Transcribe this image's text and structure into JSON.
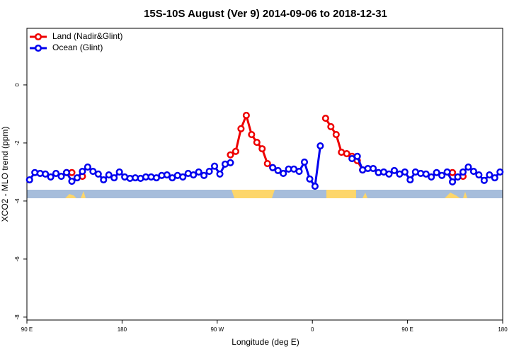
{
  "chart_data": {
    "type": "line",
    "title": "15S-10S August (Ver 9)   2014-09-06 to 2018-12-31",
    "x_label": "Longitude (deg E)",
    "y_label": "XCO2 - MLO trend (ppm)",
    "xlim": [
      90,
      540
    ],
    "ylim": [
      -8.1,
      1.95
    ],
    "xticks": [
      {
        "value": 90,
        "label": "90 E"
      },
      180,
      {
        "value": 270,
        "label": "90 W"
      },
      {
        "value": 360,
        "label": "0"
      },
      {
        "value": 450,
        "label": "90 E"
      },
      {
        "value": 540,
        "label": "180"
      }
    ],
    "yticks": [
      0,
      -2,
      -4,
      -6,
      -8
    ],
    "legend": "top-left",
    "x": [
      92.5,
      97.5,
      102.5,
      107.5,
      112.5,
      117.5,
      122.5,
      127.5,
      132.5,
      137.5,
      142.5,
      147.5,
      152.5,
      157.5,
      162.5,
      167.5,
      172.5,
      177.5,
      182.5,
      187.5,
      192.5,
      197.5,
      202.5,
      207.5,
      212.5,
      217.5,
      222.5,
      227.5,
      232.5,
      237.5,
      242.5,
      247.5,
      252.5,
      257.5,
      262.5,
      267.5,
      272.5,
      277.5,
      282.5,
      287.5,
      292.5,
      297.5,
      302.5,
      307.5,
      312.5,
      317.5,
      322.5,
      327.5,
      332.5,
      337.5,
      342.5,
      347.5,
      352.5,
      357.5,
      362.5,
      367.5,
      372.5,
      377.5,
      382.5,
      387.5,
      392.5,
      397.5,
      402.5,
      407.5,
      412.5,
      417.5,
      422.5,
      427.5,
      432.5,
      437.5,
      442.5,
      447.5,
      452.5,
      457.5,
      462.5,
      467.5,
      472.5,
      477.5,
      482.5,
      487.5,
      492.5,
      497.5,
      502.5,
      507.5,
      512.5,
      517.5,
      522.5,
      527.5,
      532.5,
      537.5
    ],
    "series": [
      {
        "name": "Land (Nadir&Glint)",
        "color": "#ee0000",
        "values": [
          null,
          null,
          null,
          null,
          null,
          null,
          null,
          -3.02,
          -3.02,
          null,
          -3.15,
          null,
          null,
          null,
          null,
          null,
          null,
          null,
          null,
          null,
          null,
          null,
          null,
          null,
          null,
          null,
          null,
          null,
          null,
          null,
          null,
          null,
          null,
          null,
          null,
          null,
          null,
          null,
          -2.41,
          -2.29,
          -1.51,
          -1.05,
          -1.71,
          -1.98,
          -2.2,
          -2.71,
          -2.85,
          null,
          null,
          null,
          null,
          null,
          null,
          null,
          null,
          null,
          -1.15,
          -1.44,
          -1.71,
          -2.32,
          -2.37,
          -2.46,
          -2.61,
          -2.93,
          null,
          null,
          null,
          null,
          null,
          null,
          null,
          null,
          null,
          null,
          null,
          null,
          null,
          null,
          null,
          null,
          -3.02,
          null,
          -3.15,
          null,
          null,
          null,
          null,
          null,
          null,
          null
        ]
      },
      {
        "name": "Ocean (Glint)",
        "color": "#0000ee",
        "values": [
          -3.27,
          -3.02,
          -3.05,
          -3.07,
          -3.17,
          -3.05,
          -3.15,
          -3.02,
          -3.32,
          -3.2,
          -2.98,
          -2.83,
          -2.98,
          -3.07,
          -3.27,
          -3.1,
          -3.2,
          -3.0,
          -3.17,
          -3.22,
          -3.2,
          -3.22,
          -3.17,
          -3.17,
          -3.2,
          -3.12,
          -3.1,
          -3.2,
          -3.12,
          -3.17,
          -3.05,
          -3.1,
          -3.0,
          -3.12,
          -2.98,
          -2.8,
          -3.07,
          -2.73,
          -2.68,
          null,
          null,
          null,
          null,
          null,
          null,
          null,
          -2.85,
          -2.95,
          -3.05,
          -2.9,
          -2.9,
          -2.98,
          -2.66,
          -3.24,
          -3.49,
          -2.1,
          null,
          null,
          null,
          null,
          null,
          -2.54,
          -2.46,
          -2.93,
          -2.88,
          -2.88,
          -3.02,
          -3.0,
          -3.07,
          -2.95,
          -3.07,
          -3.0,
          -3.27,
          -3.0,
          -3.05,
          -3.07,
          -3.17,
          -3.02,
          -3.12,
          -3.0,
          -3.34,
          -3.17,
          -3.0,
          -2.83,
          -2.98,
          -3.1,
          -3.29,
          -3.1,
          -3.2,
          -3.0
        ]
      }
    ]
  }
}
